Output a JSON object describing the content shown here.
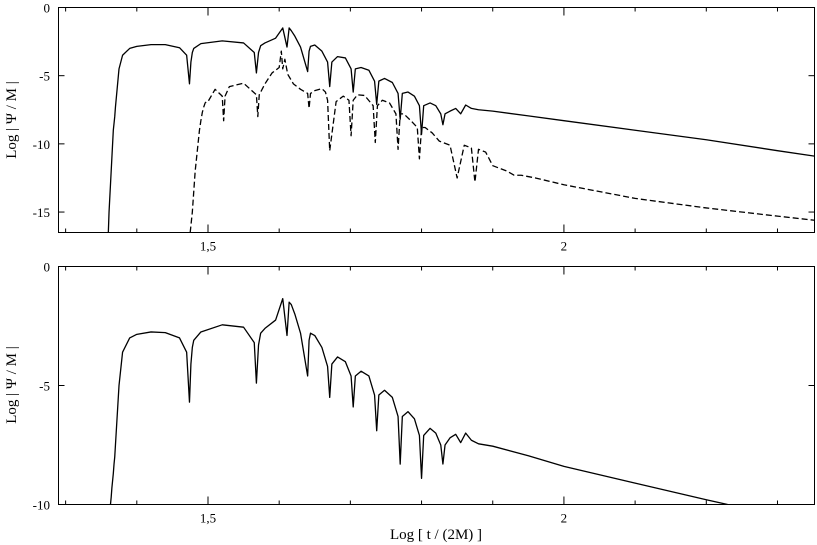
{
  "chart_data": [
    {
      "type": "line",
      "title": "",
      "xlabel": "",
      "ylabel": "Log | Ψ / M |",
      "xlim": [
        1.29,
        2.352
      ],
      "ylim": [
        -16.5,
        0
      ],
      "xticks": [
        {
          "value": 1.5,
          "label": "1,5"
        },
        {
          "value": 2.0,
          "label": "2"
        }
      ],
      "yticks": [
        {
          "value": 0,
          "label": "0"
        },
        {
          "value": -5,
          "label": "-5"
        },
        {
          "value": -10,
          "label": "-10"
        },
        {
          "value": -15,
          "label": "-15"
        }
      ],
      "grid": false,
      "series": [
        {
          "style": "solid",
          "x": [
            1.36,
            1.361,
            1.362,
            1.363,
            1.364,
            1.365,
            1.366,
            1.367,
            1.368,
            1.369,
            1.37,
            1.375,
            1.38,
            1.39,
            1.4,
            1.42,
            1.44,
            1.46,
            1.47,
            1.474,
            1.476,
            1.478,
            1.48,
            1.49,
            1.52,
            1.55,
            1.565,
            1.568,
            1.571,
            1.574,
            1.58,
            1.595,
            1.605,
            1.611,
            1.614,
            1.617,
            1.622,
            1.63,
            1.64,
            1.642,
            1.644,
            1.65,
            1.66,
            1.668,
            1.671,
            1.674,
            1.682,
            1.693,
            1.701,
            1.704,
            1.707,
            1.715,
            1.726,
            1.734,
            1.737,
            1.74,
            1.748,
            1.759,
            1.767,
            1.77,
            1.773,
            1.781,
            1.79,
            1.797,
            1.8,
            1.803,
            1.812,
            1.82,
            1.827,
            1.83,
            1.833,
            1.84,
            1.848,
            1.855,
            1.862,
            1.87,
            1.88,
            1.9,
            1.95,
            2.0,
            2.1,
            2.2,
            2.3,
            2.352
          ],
          "y": [
            -16.5,
            -15,
            -14,
            -13,
            -12,
            -11,
            -10,
            -9,
            -8.5,
            -8,
            -7.3,
            -4.5,
            -3.5,
            -3,
            -2.85,
            -2.72,
            -2.72,
            -2.95,
            -3.5,
            -5.6,
            -4,
            -3.3,
            -3,
            -2.65,
            -2.45,
            -2.6,
            -3.3,
            -4.8,
            -3.3,
            -2.8,
            -2.6,
            -2.25,
            -1.5,
            -2.9,
            -1.5,
            -1.7,
            -2.1,
            -2.9,
            -4.7,
            -3.2,
            -2.85,
            -2.75,
            -3.2,
            -4,
            -5.8,
            -4,
            -3.6,
            -3.7,
            -4.5,
            -6.2,
            -4.5,
            -4.4,
            -4.6,
            -5.4,
            -7.1,
            -5.4,
            -5.2,
            -5.5,
            -6.3,
            -8.2,
            -6.3,
            -6.2,
            -6.5,
            -7.2,
            -9.3,
            -7.2,
            -7.0,
            -7.2,
            -7.8,
            -8.6,
            -7.8,
            -7.6,
            -7.4,
            -7.8,
            -7.15,
            -7.4,
            -7.5,
            -7.6,
            -7.95,
            -8.3,
            -9.0,
            -9.7,
            -10.5,
            -10.9
          ]
        },
        {
          "style": "dashed",
          "x": [
            1.475,
            1.478,
            1.48,
            1.482,
            1.484,
            1.486,
            1.488,
            1.49,
            1.492,
            1.494,
            1.496,
            1.498,
            1.5,
            1.51,
            1.52,
            1.522,
            1.524,
            1.53,
            1.55,
            1.568,
            1.57,
            1.572,
            1.58,
            1.59,
            1.6,
            1.603,
            1.605,
            1.608,
            1.612,
            1.62,
            1.63,
            1.64,
            1.642,
            1.644,
            1.65,
            1.66,
            1.665,
            1.668,
            1.671,
            1.68,
            1.69,
            1.698,
            1.701,
            1.704,
            1.71,
            1.72,
            1.732,
            1.735,
            1.738,
            1.745,
            1.755,
            1.764,
            1.767,
            1.77,
            1.775,
            1.785,
            1.794,
            1.797,
            1.8,
            1.805,
            1.815,
            1.825,
            1.84,
            1.85,
            1.86,
            1.87,
            1.875,
            1.88,
            1.89,
            1.9,
            1.92,
            1.93,
            1.94,
            1.96,
            2.0,
            2.1,
            2.2,
            2.3,
            2.352
          ],
          "y": [
            -16.5,
            -15,
            -13.5,
            -12,
            -11,
            -10,
            -9,
            -8.3,
            -7.7,
            -7.3,
            -7,
            -6.9,
            -6.9,
            -6.0,
            -6.5,
            -8.3,
            -6.5,
            -5.8,
            -5.55,
            -6.4,
            -8.0,
            -6.4,
            -5.6,
            -4.8,
            -4.4,
            -3.2,
            -4.5,
            -3.8,
            -4.9,
            -5.6,
            -6.0,
            -6.3,
            -7.4,
            -6.3,
            -6.1,
            -5.95,
            -6.2,
            -6.8,
            -10.5,
            -6.9,
            -6.5,
            -6.8,
            -9.4,
            -6.8,
            -6.4,
            -6.45,
            -7.2,
            -9.9,
            -7.2,
            -6.8,
            -7.0,
            -7.8,
            -10.4,
            -7.8,
            -7.8,
            -8.3,
            -8.8,
            -11.1,
            -8.8,
            -8.8,
            -9.2,
            -9.8,
            -10.1,
            -12.5,
            -10.1,
            -10.3,
            -12.8,
            -10.4,
            -10.6,
            -11.6,
            -12.0,
            -12.3,
            -12.3,
            -12.5,
            -13.0,
            -14.0,
            -14.7,
            -15.3,
            -15.6
          ]
        }
      ]
    },
    {
      "type": "line",
      "title": "",
      "xlabel": "Log [ t / (2M) ]",
      "ylabel": "Log | Ψ / M |",
      "xlim": [
        1.29,
        2.352
      ],
      "ylim": [
        -10,
        0
      ],
      "xticks": [
        {
          "value": 1.5,
          "label": "1,5"
        },
        {
          "value": 2.0,
          "label": "2"
        }
      ],
      "yticks": [
        {
          "value": 0,
          "label": "0"
        },
        {
          "value": -5,
          "label": "-5"
        },
        {
          "value": -10,
          "label": "-10"
        }
      ],
      "grid": false,
      "series": [
        {
          "style": "solid",
          "x": [
            1.363,
            1.364,
            1.365,
            1.366,
            1.367,
            1.368,
            1.369,
            1.37,
            1.375,
            1.38,
            1.39,
            1.4,
            1.42,
            1.44,
            1.46,
            1.47,
            1.474,
            1.476,
            1.478,
            1.48,
            1.49,
            1.52,
            1.55,
            1.565,
            1.568,
            1.571,
            1.574,
            1.58,
            1.595,
            1.605,
            1.611,
            1.614,
            1.617,
            1.622,
            1.63,
            1.64,
            1.642,
            1.644,
            1.65,
            1.66,
            1.668,
            1.671,
            1.674,
            1.682,
            1.693,
            1.701,
            1.704,
            1.707,
            1.715,
            1.726,
            1.734,
            1.737,
            1.74,
            1.748,
            1.759,
            1.767,
            1.77,
            1.773,
            1.781,
            1.79,
            1.797,
            1.8,
            1.803,
            1.812,
            1.82,
            1.827,
            1.83,
            1.833,
            1.84,
            1.848,
            1.855,
            1.862,
            1.87,
            1.88,
            1.9,
            1.95,
            2.0,
            2.1,
            2.2,
            2.23
          ],
          "y": [
            -10,
            -9.7,
            -9.3,
            -9,
            -8.7,
            -8.3,
            -8,
            -7.5,
            -5.0,
            -3.6,
            -3.0,
            -2.85,
            -2.75,
            -2.78,
            -3.0,
            -3.6,
            -5.7,
            -4.1,
            -3.4,
            -3.1,
            -2.75,
            -2.45,
            -2.55,
            -3.2,
            -4.9,
            -3.3,
            -2.8,
            -2.6,
            -2.25,
            -1.35,
            -2.9,
            -1.5,
            -1.6,
            -2.0,
            -2.8,
            -4.6,
            -3.1,
            -2.8,
            -2.9,
            -3.4,
            -4.2,
            -5.5,
            -4.1,
            -3.8,
            -4.0,
            -4.6,
            -5.9,
            -4.6,
            -4.4,
            -4.6,
            -5.4,
            -6.9,
            -5.4,
            -5.2,
            -5.5,
            -6.3,
            -8.3,
            -6.3,
            -6.1,
            -6.4,
            -7.1,
            -8.9,
            -7.1,
            -6.8,
            -7.0,
            -7.5,
            -8.3,
            -7.5,
            -7.2,
            -7.05,
            -7.4,
            -7.0,
            -7.3,
            -7.45,
            -7.55,
            -7.95,
            -8.4,
            -9.1,
            -9.8,
            -10
          ]
        }
      ]
    }
  ]
}
